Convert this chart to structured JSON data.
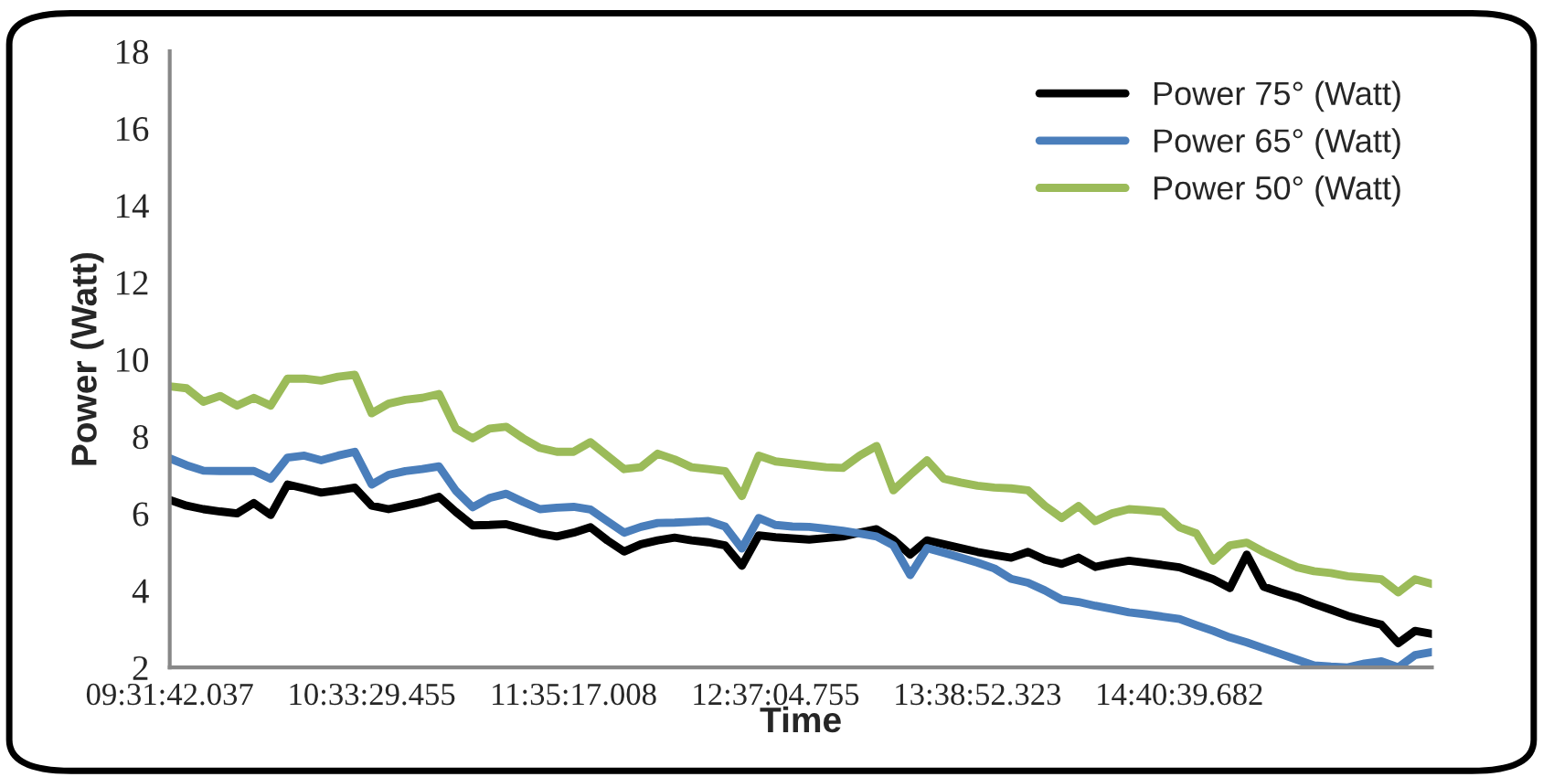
{
  "chart_data": {
    "type": "line",
    "xlabel": "Time",
    "ylabel": "Power (Watt)",
    "ylim": [
      2,
      18
    ],
    "yticks": [
      2,
      4,
      6,
      8,
      10,
      12,
      14,
      16,
      18
    ],
    "categories": [
      "09:31:42.037",
      null,
      null,
      null,
      null,
      null,
      null,
      null,
      null,
      null,
      null,
      null,
      "10:33:29.455",
      null,
      null,
      null,
      null,
      null,
      null,
      null,
      null,
      null,
      null,
      null,
      "11:35:17.008",
      null,
      null,
      null,
      null,
      null,
      null,
      null,
      null,
      null,
      null,
      null,
      "12:37:04.755",
      null,
      null,
      null,
      null,
      null,
      null,
      null,
      null,
      null,
      null,
      null,
      "13:38:52.323",
      null,
      null,
      null,
      null,
      null,
      null,
      null,
      null,
      null,
      null,
      null,
      "14:40:39.682",
      null,
      null,
      null,
      null,
      null,
      null,
      null,
      null,
      null,
      null,
      null,
      null,
      null,
      null,
      null
    ],
    "grid": false,
    "legend": "top right",
    "marker": "none",
    "line_style": "solid",
    "series": [
      {
        "name": "Power 75° (Watt)",
        "color": "#000000",
        "values": [
          6.35,
          6.2,
          6.11,
          6.05,
          6.0,
          6.27,
          5.96,
          6.75,
          6.65,
          6.54,
          6.6,
          6.67,
          6.2,
          6.11,
          6.2,
          6.3,
          6.43,
          6.04,
          5.69,
          5.7,
          5.72,
          5.6,
          5.48,
          5.4,
          5.5,
          5.64,
          5.3,
          5.01,
          5.2,
          5.3,
          5.37,
          5.3,
          5.25,
          5.17,
          4.64,
          5.43,
          5.38,
          5.35,
          5.32,
          5.36,
          5.4,
          5.5,
          5.59,
          5.32,
          4.93,
          5.3,
          5.2,
          5.1,
          5.0,
          4.92,
          4.85,
          5.0,
          4.8,
          4.69,
          4.85,
          4.61,
          4.7,
          4.77,
          4.72,
          4.66,
          4.6,
          4.45,
          4.29,
          4.06,
          4.93,
          4.1,
          3.95,
          3.82,
          3.65,
          3.5,
          3.34,
          3.22,
          3.11,
          2.63,
          2.95,
          2.87
        ]
      },
      {
        "name": "Power 65° (Watt)",
        "color": "#4a7ebb",
        "values": [
          7.43,
          7.25,
          7.11,
          7.1,
          7.1,
          7.1,
          6.9,
          7.45,
          7.5,
          7.38,
          7.5,
          7.6,
          6.75,
          7.0,
          7.1,
          7.15,
          7.22,
          6.59,
          6.16,
          6.4,
          6.51,
          6.3,
          6.11,
          6.15,
          6.17,
          6.1,
          5.8,
          5.5,
          5.65,
          5.75,
          5.76,
          5.78,
          5.8,
          5.66,
          5.09,
          5.88,
          5.7,
          5.66,
          5.65,
          5.6,
          5.55,
          5.48,
          5.4,
          5.17,
          4.4,
          5.1,
          4.98,
          4.85,
          4.72,
          4.57,
          4.3,
          4.2,
          4.0,
          3.76,
          3.7,
          3.6,
          3.52,
          3.43,
          3.38,
          3.32,
          3.26,
          3.1,
          2.95,
          2.78,
          2.65,
          2.5,
          2.35,
          2.2,
          2.05,
          2.02,
          2.0,
          2.1,
          2.16,
          2.0,
          2.32,
          2.4
        ]
      },
      {
        "name": "Power 50° (Watt)",
        "color": "#9bbb59",
        "values": [
          9.3,
          9.25,
          8.9,
          9.05,
          8.8,
          9.0,
          8.8,
          9.5,
          9.5,
          9.45,
          9.55,
          9.6,
          8.6,
          8.85,
          8.95,
          9.0,
          9.1,
          8.2,
          7.95,
          8.2,
          8.25,
          7.95,
          7.7,
          7.6,
          7.6,
          7.85,
          7.5,
          7.15,
          7.2,
          7.55,
          7.4,
          7.2,
          7.15,
          7.1,
          6.45,
          7.5,
          7.35,
          7.3,
          7.25,
          7.2,
          7.18,
          7.5,
          7.75,
          6.6,
          7.0,
          7.38,
          6.9,
          6.8,
          6.72,
          6.67,
          6.65,
          6.6,
          6.2,
          5.88,
          6.19,
          5.8,
          6.0,
          6.11,
          6.08,
          6.04,
          5.64,
          5.48,
          4.77,
          5.17,
          5.24,
          5.0,
          4.8,
          4.6,
          4.5,
          4.45,
          4.37,
          4.33,
          4.29,
          3.95,
          4.29,
          4.17
        ]
      }
    ]
  }
}
